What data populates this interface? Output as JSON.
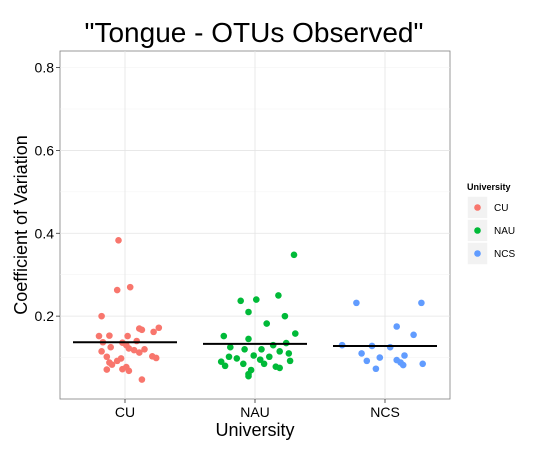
{
  "chart_data": {
    "type": "scatter",
    "title": "\"Tongue - OTUs Observed\"",
    "xlabel": "University",
    "ylabel": "Coefficient of Variation",
    "categories": [
      "CU",
      "NAU",
      "NCS"
    ],
    "ylim": [
      0.0,
      0.84
    ],
    "yticks": [
      "0.2",
      "0.4",
      "0.6",
      "0.8"
    ],
    "grid": true,
    "legend": {
      "title": "University",
      "placement": "right",
      "entries": [
        "CU",
        "NAU",
        "NCS"
      ]
    },
    "series": [
      {
        "name": "CU",
        "color": "#F8766D",
        "mean": 0.137,
        "points": [
          [
            -0.05,
            0.383
          ],
          [
            0.04,
            0.27
          ],
          [
            -0.06,
            0.263
          ],
          [
            -0.18,
            0.2
          ],
          [
            0.26,
            0.172
          ],
          [
            0.11,
            0.17
          ],
          [
            0.13,
            0.167
          ],
          [
            0.22,
            0.162
          ],
          [
            -0.2,
            0.152
          ],
          [
            -0.12,
            0.153
          ],
          [
            0.02,
            0.152
          ],
          [
            0.09,
            0.14
          ],
          [
            -0.17,
            0.137
          ],
          [
            -0.02,
            0.136
          ],
          [
            0.01,
            0.13
          ],
          [
            -0.11,
            0.125
          ],
          [
            0.03,
            0.122
          ],
          [
            0.15,
            0.12
          ],
          [
            0.07,
            0.118
          ],
          [
            -0.18,
            0.115
          ],
          [
            0.11,
            0.112
          ],
          [
            -0.14,
            0.102
          ],
          [
            0.21,
            0.103
          ],
          [
            0.24,
            0.099
          ],
          [
            -0.06,
            0.092
          ],
          [
            -0.03,
            0.098
          ],
          [
            -0.12,
            0.088
          ],
          [
            -0.1,
            0.083
          ],
          [
            0.01,
            0.077
          ],
          [
            -0.02,
            0.072
          ],
          [
            -0.14,
            0.071
          ],
          [
            0.03,
            0.068
          ],
          [
            0.13,
            0.047
          ]
        ]
      },
      {
        "name": "NAU",
        "color": "#00BA38",
        "mean": 0.133,
        "points": [
          [
            0.3,
            0.348
          ],
          [
            0.18,
            0.25
          ],
          [
            -0.11,
            0.237
          ],
          [
            0.01,
            0.24
          ],
          [
            -0.05,
            0.21
          ],
          [
            0.23,
            0.2
          ],
          [
            0.09,
            0.182
          ],
          [
            -0.24,
            0.152
          ],
          [
            0.31,
            0.158
          ],
          [
            -0.05,
            0.145
          ],
          [
            0.24,
            0.135
          ],
          [
            0.14,
            0.13
          ],
          [
            -0.19,
            0.125
          ],
          [
            -0.08,
            0.12
          ],
          [
            0.05,
            0.12
          ],
          [
            0.19,
            0.115
          ],
          [
            0.26,
            0.11
          ],
          [
            -0.01,
            0.105
          ],
          [
            -0.2,
            0.102
          ],
          [
            0.11,
            0.102
          ],
          [
            -0.14,
            0.098
          ],
          [
            0.04,
            0.095
          ],
          [
            -0.26,
            0.09
          ],
          [
            0.27,
            0.092
          ],
          [
            -0.23,
            0.08
          ],
          [
            -0.09,
            0.085
          ],
          [
            0.16,
            0.078
          ],
          [
            0.19,
            0.075
          ],
          [
            -0.03,
            0.07
          ],
          [
            0.07,
            0.085
          ],
          [
            -0.05,
            0.06
          ],
          [
            -0.05,
            0.055
          ]
        ]
      },
      {
        "name": "NCS",
        "color": "#619CFF",
        "mean": 0.128,
        "points": [
          [
            -0.22,
            0.232
          ],
          [
            0.28,
            0.232
          ],
          [
            0.09,
            0.175
          ],
          [
            0.22,
            0.155
          ],
          [
            -0.33,
            0.13
          ],
          [
            -0.1,
            0.128
          ],
          [
            0.04,
            0.125
          ],
          [
            -0.18,
            0.11
          ],
          [
            -0.04,
            0.1
          ],
          [
            0.15,
            0.105
          ],
          [
            0.09,
            0.094
          ],
          [
            -0.14,
            0.092
          ],
          [
            0.12,
            0.088
          ],
          [
            0.14,
            0.082
          ],
          [
            0.29,
            0.085
          ],
          [
            -0.07,
            0.073
          ]
        ]
      }
    ]
  }
}
